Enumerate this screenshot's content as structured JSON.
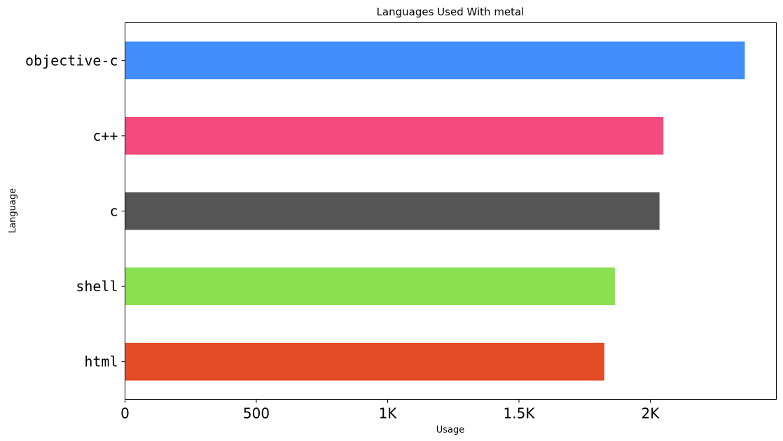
{
  "chart_data": {
    "type": "bar",
    "orientation": "horizontal",
    "title": "Languages Used With metal",
    "xlabel": "Usage",
    "ylabel": "Language",
    "categories": [
      "objective-c",
      "c++",
      "c",
      "shell",
      "html"
    ],
    "values": [
      2360,
      2050,
      2035,
      1865,
      1825
    ],
    "colors": [
      "#438eff",
      "#f34b7d",
      "#555555",
      "#89e051",
      "#e34c26"
    ],
    "xlim": [
      0,
      2480
    ],
    "xticks": [
      0,
      500,
      1000,
      1500,
      2000
    ],
    "xtick_labels": [
      "0",
      "500",
      "1K",
      "1.5K",
      "2K"
    ],
    "grid": false,
    "legend": "none"
  }
}
